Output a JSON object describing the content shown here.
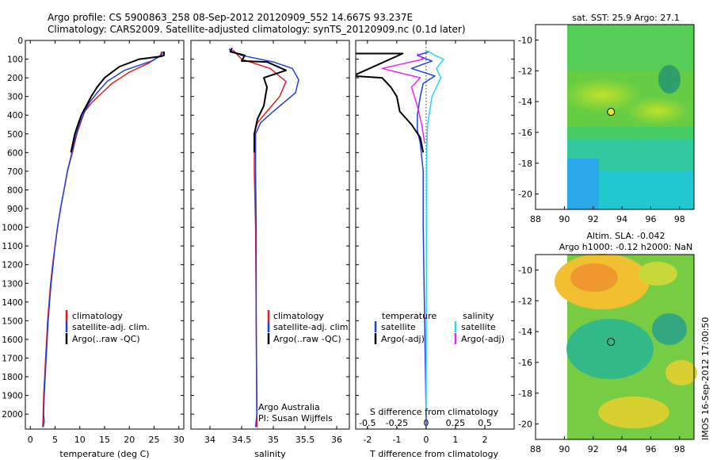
{
  "header": {
    "line1": "Argo profile: CS 5900863_258 08-Sep-2012 20120909_552 14.667S 93.237E",
    "line2": "Climatology: CARS2009. Satellite-adjusted climatology: synTS_20120909.nc (0.1d later)"
  },
  "colors": {
    "climatology": "#e41a1c",
    "satellite": "#1f3fe0",
    "argo": "#000000",
    "salinity_sat": "#22d8f0",
    "salinity_argo": "#ee22ee"
  },
  "chart_data": [
    {
      "type": "line",
      "id": "temperature",
      "xlabel": "temperature (deg C)",
      "ylabel": "",
      "xlim": [
        -1,
        31
      ],
      "ylim": [
        2080,
        0
      ],
      "xticks": [
        0,
        5,
        10,
        15,
        20,
        25,
        30
      ],
      "xtick_labels": [
        "0",
        "5",
        "10",
        "15",
        "20",
        "25",
        "30"
      ],
      "yticks": [
        0,
        100,
        200,
        300,
        400,
        500,
        600,
        700,
        800,
        900,
        1000,
        1100,
        1200,
        1300,
        1400,
        1500,
        1600,
        1700,
        1800,
        1900,
        2000
      ],
      "legend": [
        "climatology",
        "satellite-adj. clim.",
        "Argo(..raw -QC)"
      ],
      "series": [
        {
          "name": "climatology",
          "color": "#e41a1c",
          "points": [
            [
              26.5,
              60
            ],
            [
              26.3,
              80
            ],
            [
              24,
              120
            ],
            [
              20,
              170
            ],
            [
              16.5,
              230
            ],
            [
              14.5,
              280
            ],
            [
              12.5,
              330
            ],
            [
              11,
              380
            ],
            [
              10.3,
              430
            ],
            [
              9.4,
              500
            ],
            [
              8.5,
              600
            ],
            [
              7.5,
              700
            ],
            [
              6.8,
              800
            ],
            [
              6.1,
              900
            ],
            [
              5.5,
              1000
            ],
            [
              5.0,
              1100
            ],
            [
              4.5,
              1200
            ],
            [
              4.1,
              1300
            ],
            [
              3.8,
              1400
            ],
            [
              3.5,
              1500
            ],
            [
              3.3,
              1600
            ],
            [
              3.1,
              1700
            ],
            [
              2.9,
              1800
            ],
            [
              2.7,
              1900
            ],
            [
              2.6,
              2000
            ],
            [
              2.5,
              2070
            ]
          ]
        },
        {
          "name": "satellite-adj. clim.",
          "color": "#1f3fe0",
          "points": [
            [
              26.8,
              60
            ],
            [
              26.5,
              80
            ],
            [
              24.5,
              110
            ],
            [
              19,
              160
            ],
            [
              15.5,
              220
            ],
            [
              13.5,
              280
            ],
            [
              12,
              330
            ],
            [
              10.8,
              390
            ],
            [
              10,
              440
            ],
            [
              9.3,
              500
            ],
            [
              8.4,
              600
            ],
            [
              7.5,
              700
            ],
            [
              6.8,
              800
            ],
            [
              6.1,
              900
            ],
            [
              5.5,
              1000
            ],
            [
              5.0,
              1100
            ],
            [
              4.6,
              1200
            ],
            [
              4.2,
              1300
            ],
            [
              3.9,
              1400
            ],
            [
              3.6,
              1500
            ],
            [
              3.4,
              1600
            ],
            [
              3.2,
              1700
            ],
            [
              3.0,
              1800
            ],
            [
              2.8,
              1900
            ],
            [
              2.7,
              2000
            ],
            [
              2.8,
              2040
            ],
            [
              2.6,
              2070
            ]
          ]
        },
        {
          "name": "Argo(..raw -QC)",
          "color": "#000000",
          "points": [
            [
              27,
              60
            ],
            [
              27,
              80
            ],
            [
              26.5,
              85
            ],
            [
              22,
              100
            ],
            [
              18,
              140
            ],
            [
              15,
              200
            ],
            [
              13.5,
              250
            ],
            [
              12.3,
              300
            ],
            [
              11.3,
              350
            ],
            [
              10.3,
              400
            ],
            [
              9.5,
              460
            ],
            [
              9.0,
              500
            ],
            [
              8.2,
              600
            ]
          ]
        }
      ]
    },
    {
      "type": "line",
      "id": "salinity",
      "xlabel": "salinity",
      "ylabel": "",
      "xlim": [
        33.7,
        36.2
      ],
      "ylim": [
        2080,
        0
      ],
      "xticks": [
        34,
        34.5,
        35,
        35.5,
        36
      ],
      "xtick_labels": [
        "34",
        "34.5",
        "35",
        "35.5",
        "36"
      ],
      "legend": [
        "climatology",
        "satellite-adj. clim.",
        "Argo(..raw -QC)"
      ],
      "annotation": [
        "Argo Australia",
        "PI: Susan Wijffels"
      ],
      "series": [
        {
          "name": "climatology",
          "color": "#e41a1c",
          "points": [
            [
              34.36,
              50
            ],
            [
              34.5,
              100
            ],
            [
              34.95,
              150
            ],
            [
              35.2,
              220
            ],
            [
              35.1,
              300
            ],
            [
              34.9,
              380
            ],
            [
              34.75,
              440
            ],
            [
              34.7,
              500
            ],
            [
              34.7,
              700
            ],
            [
              34.72,
              1000
            ],
            [
              34.73,
              1500
            ],
            [
              34.74,
              2000
            ],
            [
              34.74,
              2070
            ]
          ]
        },
        {
          "name": "satellite-adj. clim.",
          "color": "#1f3fe0",
          "points": [
            [
              34.3,
              45
            ],
            [
              34.35,
              60
            ],
            [
              34.5,
              80
            ],
            [
              35.0,
              115
            ],
            [
              35.3,
              150
            ],
            [
              35.4,
              210
            ],
            [
              35.35,
              280
            ],
            [
              35.0,
              380
            ],
            [
              34.8,
              440
            ],
            [
              34.72,
              500
            ],
            [
              34.72,
              700
            ],
            [
              34.73,
              1000
            ],
            [
              34.73,
              1500
            ],
            [
              34.74,
              2000
            ],
            [
              34.72,
              2070
            ]
          ]
        },
        {
          "name": "Argo(..raw -QC)",
          "color": "#000000",
          "points": [
            [
              34.35,
              40
            ],
            [
              34.32,
              60
            ],
            [
              34.55,
              80
            ],
            [
              34.5,
              110
            ],
            [
              34.9,
              115
            ],
            [
              35.2,
              160
            ],
            [
              34.85,
              200
            ],
            [
              34.9,
              250
            ],
            [
              34.85,
              350
            ],
            [
              34.75,
              420
            ],
            [
              34.7,
              500
            ],
            [
              34.7,
              600
            ]
          ]
        }
      ]
    },
    {
      "type": "line",
      "id": "difference",
      "xlabel": "T difference from climatology",
      "ylabel": "",
      "xlim": [
        -2.4,
        3.0
      ],
      "ylim": [
        2080,
        0
      ],
      "xticks": [
        -2,
        -1,
        0,
        1,
        2
      ],
      "xtick_labels": [
        "-2",
        "-1",
        "0",
        "1",
        "2"
      ],
      "top_xlabel": "S difference from climatology",
      "top_xticks": [
        -0.5,
        -0.25,
        0,
        0.25,
        0.5
      ],
      "top_xtick_labels": [
        "-0.5",
        "-0.25",
        "0",
        "0.25",
        "0.5"
      ],
      "legend_headers": [
        "temperature",
        "salinity"
      ],
      "legend": [
        "satellite",
        "Argo(-adj)",
        "satellite",
        "Argo(-adj)"
      ],
      "series": [
        {
          "name": "T satellite",
          "color": "#1f3fe0",
          "points": [
            [
              0.1,
              60
            ],
            [
              -0.3,
              80
            ],
            [
              0.2,
              110
            ],
            [
              -0.5,
              150
            ],
            [
              0.3,
              190
            ],
            [
              -0.1,
              230
            ],
            [
              -0.2,
              300
            ],
            [
              -0.3,
              400
            ],
            [
              -0.3,
              480
            ],
            [
              -0.2,
              550
            ],
            [
              -0.1,
              700
            ],
            [
              -0.1,
              1000
            ],
            [
              -0.05,
              1500
            ],
            [
              0,
              2000
            ],
            [
              0,
              2070
            ]
          ]
        },
        {
          "name": "T Argo(-adj)",
          "color": "#000000",
          "points": [
            [
              -2.5,
              70
            ],
            [
              -0.8,
              70
            ],
            [
              -2.5,
              190
            ],
            [
              -1.5,
              200
            ],
            [
              -1.2,
              250
            ],
            [
              -1.0,
              300
            ],
            [
              -0.9,
              380
            ],
            [
              -0.5,
              450
            ],
            [
              -0.2,
              520
            ],
            [
              -0.1,
              600
            ]
          ]
        },
        {
          "name": "S satellite",
          "color": "#22d8f0",
          "points": [
            [
              0.05,
              55
            ],
            [
              0.3,
              80
            ],
            [
              0.6,
              100
            ],
            [
              0.35,
              150
            ],
            [
              0.5,
              200
            ],
            [
              0.2,
              300
            ],
            [
              0.05,
              450
            ],
            [
              0.02,
              600
            ],
            [
              0.01,
              1000
            ],
            [
              0,
              2000
            ]
          ]
        },
        {
          "name": "S Argo(-adj)",
          "color": "#ee22ee",
          "points": [
            [
              -0.3,
              70
            ],
            [
              -0.1,
              100
            ],
            [
              -1.5,
              150
            ],
            [
              -0.2,
              200
            ],
            [
              -0.5,
              250
            ],
            [
              -0.3,
              350
            ],
            [
              -0.15,
              450
            ],
            [
              -0.05,
              550
            ]
          ]
        }
      ]
    },
    {
      "type": "heatmap",
      "id": "sst-map",
      "title": "sat. SST: 25.9 Argo: 27.1",
      "xlim": [
        88,
        99
      ],
      "ylim": [
        -21,
        -9
      ],
      "xticks": [
        88,
        90,
        92,
        94,
        96,
        98
      ],
      "xtick_labels": [
        "88",
        "90",
        "92",
        "94",
        "96",
        "98"
      ],
      "yticks": [
        -10,
        -12,
        -14,
        -16,
        -18,
        -20
      ],
      "ytick_labels": [
        "-10",
        "-12",
        "-14",
        "-16",
        "-18",
        "-20"
      ],
      "argo_position": [
        93.237,
        -14.667
      ],
      "marker_color": "#e8e82a"
    },
    {
      "type": "heatmap",
      "id": "sla-map",
      "title": [
        "Altim. SLA: -0.042",
        "Argo h1000: -0.12 h2000: NaN"
      ],
      "xlim": [
        88,
        99
      ],
      "ylim": [
        -21,
        -9
      ],
      "xticks": [
        88,
        90,
        92,
        94,
        96,
        98
      ],
      "xtick_labels": [
        "88",
        "90",
        "92",
        "94",
        "96",
        "98"
      ],
      "yticks": [
        -10,
        -12,
        -14,
        -16,
        -18,
        -20
      ],
      "ytick_labels": [
        "-10",
        "-12",
        "-14",
        "-16",
        "-18",
        "-20"
      ],
      "argo_position": [
        93.237,
        -14.667
      ]
    }
  ],
  "footer": {
    "stamp": "IMOS 16-Sep-2012 17:00:50"
  }
}
